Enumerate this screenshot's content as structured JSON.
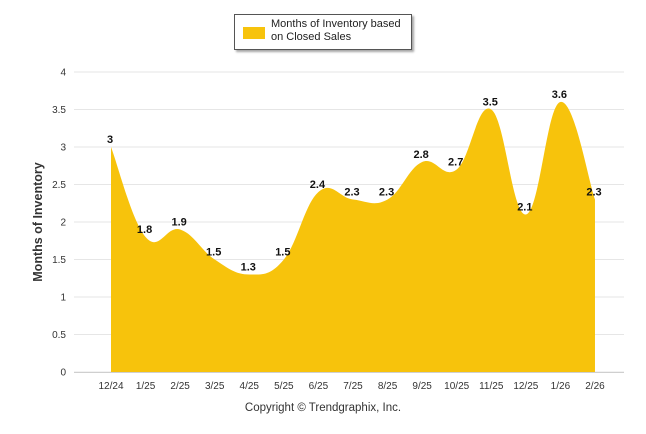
{
  "chart_data": {
    "type": "area",
    "categories": [
      "12/24",
      "1/25",
      "2/25",
      "3/25",
      "4/25",
      "5/25",
      "6/25",
      "7/25",
      "8/25",
      "9/25",
      "10/25",
      "11/25",
      "12/25",
      "1/26",
      "2/26"
    ],
    "series": [
      {
        "name": "Months of Inventory based on Closed Sales",
        "values": [
          3,
          1.8,
          1.9,
          1.5,
          1.3,
          1.5,
          2.4,
          2.3,
          2.3,
          2.8,
          2.7,
          3.5,
          2.1,
          3.6,
          2.3
        ],
        "color": "#F7C30C"
      }
    ],
    "data_labels": [
      "3",
      "1.8",
      "1.9",
      "1.5",
      "1.3",
      "1.5",
      "2.4",
      "2.3",
      "2.3",
      "2.8",
      "2.7",
      "3.5",
      "2.1",
      "3.6",
      "2.3"
    ],
    "y_ticks": [
      "0",
      "0.5",
      "1",
      "1.5",
      "2",
      "2.5",
      "3",
      "3.5",
      "4"
    ],
    "ylim": [
      0,
      4
    ],
    "xlabel": "",
    "ylabel": "Months of Inventory",
    "grid": true,
    "legend_position": "top-center"
  },
  "legend": {
    "text": "Months of Inventory based on Closed Sales",
    "color": "#F7C30C"
  },
  "footer": {
    "copyright": "Copyright © Trendgraphix, Inc."
  },
  "colors": {
    "grid": "#e6e6e6",
    "axis_text": "#333333",
    "label_text": "#111111"
  }
}
